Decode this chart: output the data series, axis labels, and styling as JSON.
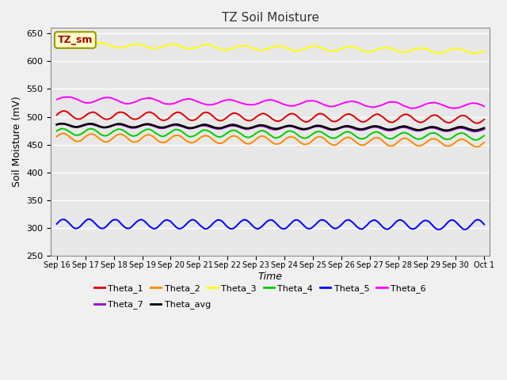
{
  "title": "TZ Soil Moisture",
  "xlabel": "Time",
  "ylabel": "Soil Moisture (mV)",
  "ylim": [
    250,
    660
  ],
  "yticks": [
    250,
    300,
    350,
    400,
    450,
    500,
    550,
    600,
    650
  ],
  "bg_color": "#e8e8e8",
  "fig_bg": "#f0f0f0",
  "n_points": 480,
  "series": {
    "Theta_1": {
      "color": "#dd0000",
      "base": 503,
      "trend": -0.5,
      "amp": 7,
      "freq": 1.0,
      "phase": 0.0
    },
    "Theta_2": {
      "color": "#ff8800",
      "base": 463,
      "trend": -0.7,
      "amp": 7,
      "freq": 1.0,
      "phase": 0.2
    },
    "Theta_3": {
      "color": "#ffff00",
      "base": 630,
      "trend": -0.8,
      "amp": 4,
      "freq": 0.8,
      "phase": 0.1
    },
    "Theta_4": {
      "color": "#00cc00",
      "base": 473,
      "trend": -0.6,
      "amp": 6,
      "freq": 1.0,
      "phase": 0.3
    },
    "Theta_5": {
      "color": "#0000ff",
      "base": 307,
      "trend": -0.1,
      "amp": 8,
      "freq": 1.1,
      "phase": 0.0
    },
    "Theta_6": {
      "color": "#ff00ff",
      "base": 531,
      "trend": -0.8,
      "amp": 5,
      "freq": 0.7,
      "phase": 0.0
    },
    "Theta_7": {
      "color": "#9900cc",
      "base": 484,
      "trend": -0.5,
      "amp": 3,
      "freq": 1.0,
      "phase": 0.5
    },
    "Theta_avg": {
      "color": "#000000",
      "base": 485,
      "trend": -0.45,
      "amp": 3,
      "freq": 1.0,
      "phase": 0.4
    }
  },
  "legend_entries": [
    "Theta_1",
    "Theta_2",
    "Theta_3",
    "Theta_4",
    "Theta_5",
    "Theta_6",
    "Theta_7",
    "Theta_avg"
  ],
  "legend_colors": {
    "Theta_1": "#dd0000",
    "Theta_2": "#ff8800",
    "Theta_3": "#ffff00",
    "Theta_4": "#00cc00",
    "Theta_5": "#0000ff",
    "Theta_6": "#ff00ff",
    "Theta_7": "#9900cc",
    "Theta_avg": "#000000"
  },
  "xtick_labels": [
    "Sep 16",
    "Sep 17",
    "Sep 18",
    "Sep 19",
    "Sep 20",
    "Sep 21",
    "Sep 22",
    "Sep 23",
    "Sep 24",
    "Sep 25",
    "Sep 26",
    "Sep 27",
    "Sep 28",
    "Sep 29",
    "Sep 30",
    "Oct 1"
  ],
  "annotation_text": "TZ_sm",
  "annotation_color": "#aa0000",
  "annotation_bg": "#ffffcc",
  "annotation_border": "#999900"
}
